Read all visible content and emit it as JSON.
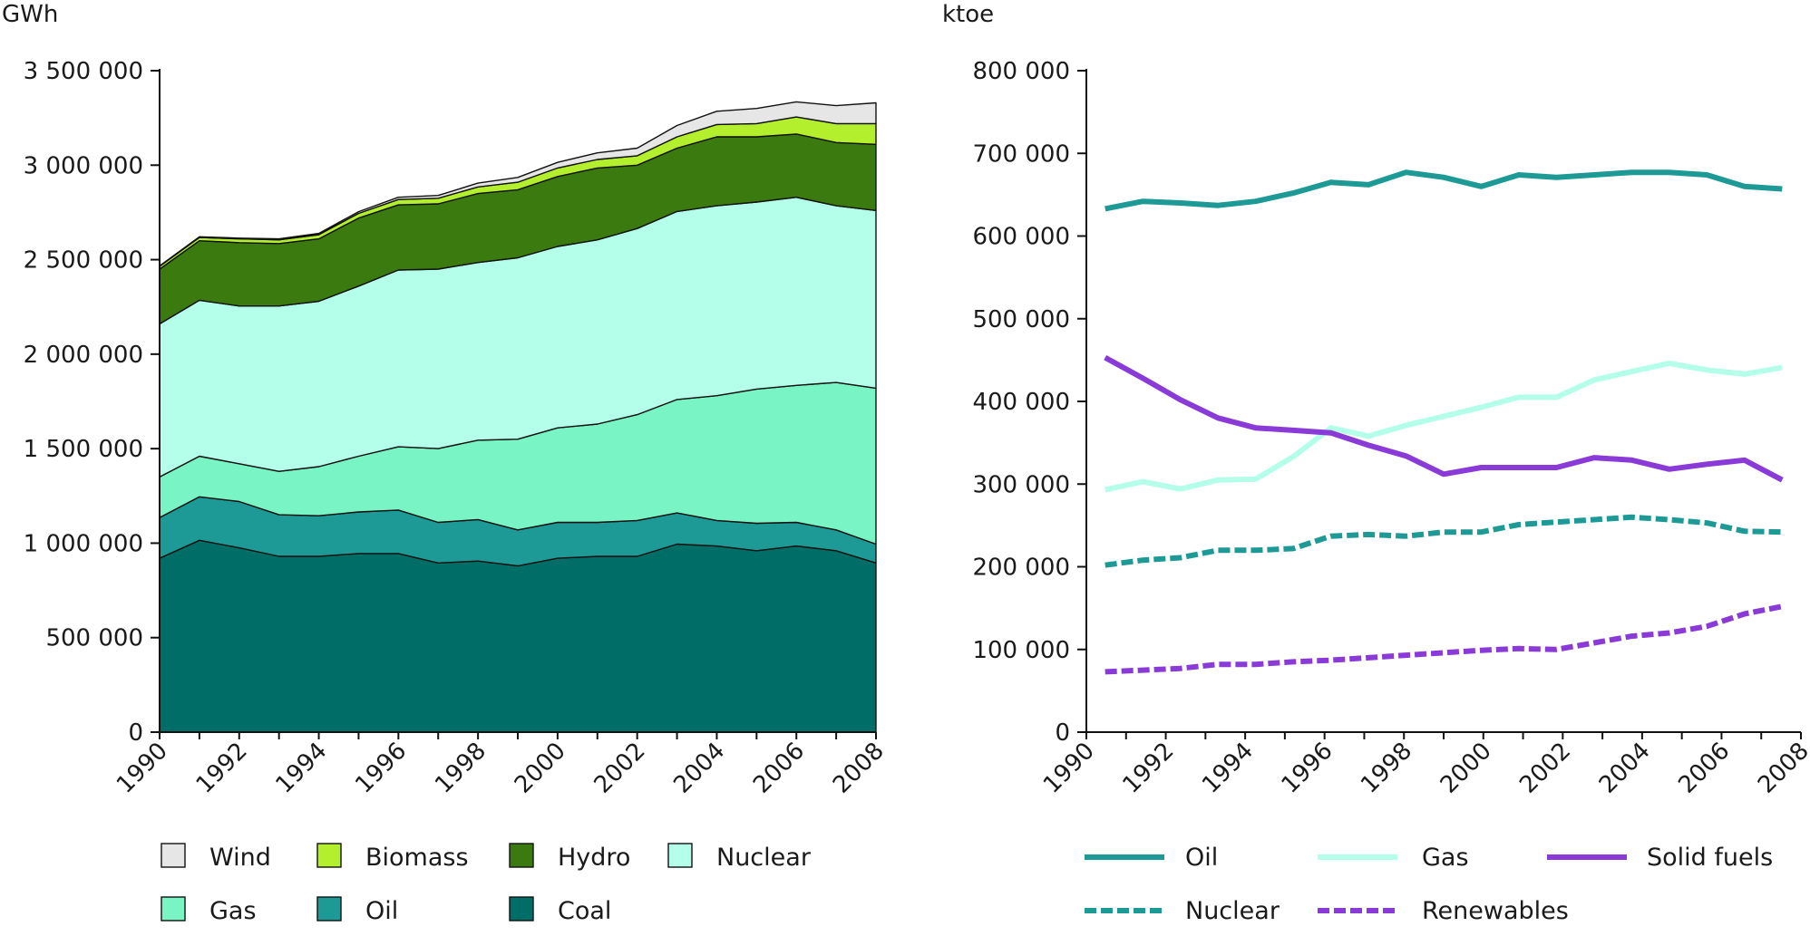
{
  "chart_data": [
    {
      "type": "area",
      "stacked": true,
      "unit_label": "GWh",
      "x": [
        1990,
        1991,
        1992,
        1993,
        1994,
        1995,
        1996,
        1997,
        1998,
        1999,
        2000,
        2001,
        2002,
        2003,
        2004,
        2005,
        2006,
        2007,
        2008
      ],
      "x_tick_labels": [
        "1990",
        "1992",
        "1994",
        "1996",
        "1998",
        "2000",
        "2002",
        "2004",
        "2006",
        "2008"
      ],
      "x_tick_values": [
        1990,
        1992,
        1994,
        1996,
        1998,
        2000,
        2002,
        2004,
        2006,
        2008
      ],
      "ylim": [
        0,
        3500000
      ],
      "y_ticks": [
        0,
        500000,
        1000000,
        1500000,
        2000000,
        2500000,
        3000000,
        3500000
      ],
      "y_tick_labels": [
        "0",
        "500 000",
        "1 000 000",
        "1 500 000",
        "2 000 000",
        "2 500 000",
        "3 000 000",
        "3 500 000"
      ],
      "series": [
        {
          "name": "Coal",
          "color": "#006e67",
          "values": [
            920000,
            1015000,
            975000,
            930000,
            930000,
            945000,
            945000,
            895000,
            905000,
            880000,
            920000,
            930000,
            930000,
            995000,
            985000,
            960000,
            985000,
            960000,
            895000
          ]
        },
        {
          "name": "Oil",
          "color": "#1e9a96",
          "values": [
            215000,
            230000,
            245000,
            220000,
            215000,
            220000,
            230000,
            215000,
            220000,
            190000,
            190000,
            180000,
            190000,
            165000,
            135000,
            145000,
            125000,
            110000,
            100000
          ]
        },
        {
          "name": "Gas",
          "color": "#79f4c4",
          "values": [
            215000,
            215000,
            200000,
            230000,
            260000,
            295000,
            335000,
            390000,
            420000,
            480000,
            500000,
            520000,
            560000,
            600000,
            660000,
            710000,
            725000,
            780000,
            825000
          ]
        },
        {
          "name": "Nuclear",
          "color": "#b3ffe9",
          "values": [
            810000,
            825000,
            835000,
            875000,
            875000,
            900000,
            935000,
            950000,
            940000,
            960000,
            960000,
            975000,
            985000,
            995000,
            1005000,
            990000,
            995000,
            935000,
            940000
          ]
        },
        {
          "name": "Hydro",
          "color": "#3b7a0f",
          "values": [
            290000,
            315000,
            335000,
            330000,
            330000,
            360000,
            345000,
            345000,
            365000,
            360000,
            370000,
            380000,
            335000,
            335000,
            365000,
            345000,
            335000,
            335000,
            350000
          ]
        },
        {
          "name": "Biomass",
          "color": "#b4ef2e",
          "values": [
            15000,
            18000,
            20000,
            20000,
            22000,
            25000,
            28000,
            30000,
            35000,
            40000,
            45000,
            45000,
            50000,
            60000,
            65000,
            70000,
            90000,
            100000,
            110000
          ]
        },
        {
          "name": "Wind",
          "color": "#e6e6e6",
          "values": [
            2000,
            3000,
            4000,
            5000,
            7000,
            9000,
            12000,
            15000,
            20000,
            25000,
            30000,
            35000,
            40000,
            60000,
            70000,
            80000,
            80000,
            95000,
            110000
          ]
        }
      ],
      "legend_order": [
        "Wind",
        "Biomass",
        "Hydro",
        "Nuclear",
        "Gas",
        "Oil",
        "Coal"
      ]
    },
    {
      "type": "line",
      "unit_label": "ktoe",
      "x": [
        1990,
        1991,
        1992,
        1993,
        1994,
        1995,
        1996,
        1997,
        1998,
        1999,
        2000,
        2001,
        2002,
        2003,
        2004,
        2005,
        2006,
        2007,
        2008
      ],
      "x_tick_labels": [
        "1990",
        "1992",
        "1994",
        "1996",
        "1998",
        "2000",
        "2002",
        "2004",
        "2006",
        "2008"
      ],
      "x_tick_values": [
        1990,
        1992,
        1994,
        1996,
        1998,
        2000,
        2002,
        2004,
        2006,
        2008
      ],
      "ylim": [
        0,
        800000
      ],
      "y_ticks": [
        0,
        100000,
        200000,
        300000,
        400000,
        500000,
        600000,
        700000,
        800000
      ],
      "y_tick_labels": [
        "0",
        "100 000",
        "200 000",
        "300 000",
        "400 000",
        "500 000",
        "600 000",
        "700 000",
        "800 000"
      ],
      "series": [
        {
          "name": "Oil",
          "color": "#1e9a96",
          "dash": "solid",
          "values": [
            633000,
            642000,
            640000,
            637000,
            642000,
            652000,
            665000,
            662000,
            677000,
            671000,
            660000,
            674000,
            671000,
            674000,
            677000,
            677000,
            674000,
            660000,
            657000
          ]
        },
        {
          "name": "Gas",
          "color": "#b3ffe9",
          "dash": "solid",
          "values": [
            293000,
            303000,
            294000,
            305000,
            306000,
            333000,
            368000,
            358000,
            371000,
            382000,
            393000,
            405000,
            405000,
            426000,
            436000,
            446000,
            438000,
            433000,
            441000
          ]
        },
        {
          "name": "Solid fuels",
          "color": "#8a3ad6",
          "dash": "solid",
          "values": [
            453000,
            428000,
            402000,
            380000,
            368000,
            365000,
            362000,
            347000,
            334000,
            312000,
            320000,
            320000,
            320000,
            332000,
            329000,
            318000,
            324000,
            329000,
            305000
          ]
        },
        {
          "name": "Nuclear",
          "color": "#1e9a96",
          "dash": "dashed",
          "values": [
            202000,
            208000,
            211000,
            220000,
            220000,
            222000,
            237000,
            239000,
            237000,
            242000,
            242000,
            251000,
            254000,
            257000,
            260000,
            257000,
            253000,
            243000,
            242000
          ]
        },
        {
          "name": "Renewables",
          "color": "#8a3ad6",
          "dash": "dashed",
          "values": [
            73000,
            75000,
            77000,
            82000,
            82000,
            85000,
            87000,
            90000,
            93000,
            96000,
            99000,
            101000,
            100000,
            108000,
            116000,
            120000,
            128000,
            143000,
            152000
          ]
        }
      ],
      "legend_order": [
        "Oil",
        "Gas",
        "Solid fuels",
        "Nuclear",
        "Renewables"
      ]
    }
  ]
}
